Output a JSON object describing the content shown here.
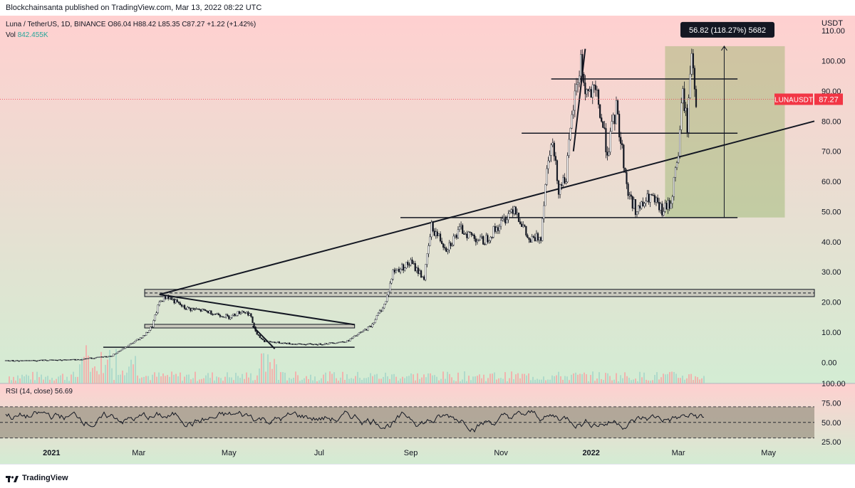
{
  "header": {
    "publisher": "Blockchainsanta published on TradingView.com, Mar 13, 2022 08:22 UTC"
  },
  "legend": {
    "symbol": "Luna / TetherUS, 1D, BINANCE",
    "ohlc": "O86.04 H88.42 L85.35 C87.27 +1.22 (+1.42%)",
    "vol_label": "Vol",
    "vol_value": "842.455K",
    "rsi_label": "RSI (14, close)",
    "rsi_value": "56.69"
  },
  "footer": {
    "brand": "TradingView"
  },
  "colors": {
    "top_band": "#ffd0d0",
    "bottom_band": "#d3ecd3",
    "price_line": "#f23645",
    "rsi_band": "#9e9686",
    "measure_box": "#7fa84e",
    "volume_bar": "#f7a5a5"
  },
  "chart_data": [
    {
      "type": "candlestick",
      "title": "Luna / TetherUS, 1D, BINANCE",
      "y_unit": "USDT",
      "y_ticks": [
        "110.00",
        "100.00",
        "90.00",
        "80.00",
        "70.00",
        "60.00",
        "50.00",
        "40.00",
        "30.00",
        "20.00",
        "10.00",
        "0.00"
      ],
      "ylim": [
        -7,
        115
      ],
      "x_ticks": [
        "2021",
        "Mar",
        "May",
        "Jul",
        "Sep",
        "Nov",
        "2022",
        "Mar",
        "May"
      ],
      "last_price_label": "LUNAUSDT",
      "last_price": "87.27",
      "measure_label": "56.82 (118.27%) 5682",
      "measure_from": 48.05,
      "measure_to": 104.87,
      "horizontal_levels": [
        94,
        76,
        48,
        23,
        12,
        5
      ],
      "trendline": {
        "from": [
          "Mar 2021",
          23
        ],
        "to": [
          "Mar 2022",
          80
        ]
      },
      "series": [
        {
          "name": "LUNAUSDT close (approx.)",
          "points": [
            [
              "2020-12-01",
              0.5
            ],
            [
              "2021-01-15",
              0.8
            ],
            [
              "2021-02-10",
              2
            ],
            [
              "2021-02-20",
              5
            ],
            [
              "2021-03-05",
              9
            ],
            [
              "2021-03-10",
              12
            ],
            [
              "2021-03-15",
              20
            ],
            [
              "2021-03-20",
              22
            ],
            [
              "2021-04-01",
              18
            ],
            [
              "2021-04-15",
              17
            ],
            [
              "2021-05-01",
              15
            ],
            [
              "2021-05-10",
              17
            ],
            [
              "2021-05-15",
              16
            ],
            [
              "2021-05-20",
              9
            ],
            [
              "2021-05-25",
              7
            ],
            [
              "2021-06-15",
              6
            ],
            [
              "2021-07-01",
              6
            ],
            [
              "2021-07-20",
              7
            ],
            [
              "2021-08-05",
              12
            ],
            [
              "2021-08-15",
              20
            ],
            [
              "2021-08-20",
              30
            ],
            [
              "2021-09-01",
              33
            ],
            [
              "2021-09-10",
              28
            ],
            [
              "2021-09-15",
              45
            ],
            [
              "2021-09-25",
              38
            ],
            [
              "2021-10-05",
              44
            ],
            [
              "2021-10-20",
              40
            ],
            [
              "2021-11-01",
              46
            ],
            [
              "2021-11-10",
              52
            ],
            [
              "2021-11-20",
              40
            ],
            [
              "2021-11-28",
              42
            ],
            [
              "2021-12-01",
              60
            ],
            [
              "2021-12-05",
              75
            ],
            [
              "2021-12-10",
              58
            ],
            [
              "2021-12-15",
              62
            ],
            [
              "2021-12-20",
              85
            ],
            [
              "2021-12-25",
              100
            ],
            [
              "2021-12-28",
              90
            ],
            [
              "2022-01-05",
              88
            ],
            [
              "2022-01-12",
              70
            ],
            [
              "2022-01-18",
              84
            ],
            [
              "2022-01-22",
              70
            ],
            [
              "2022-01-26",
              56
            ],
            [
              "2022-02-01",
              50
            ],
            [
              "2022-02-10",
              55
            ],
            [
              "2022-02-18",
              50
            ],
            [
              "2022-02-24",
              53
            ],
            [
              "2022-03-01",
              70
            ],
            [
              "2022-03-04",
              90
            ],
            [
              "2022-03-07",
              78
            ],
            [
              "2022-03-10",
              104
            ],
            [
              "2022-03-13",
              87.27
            ]
          ]
        }
      ]
    },
    {
      "type": "line",
      "title": "RSI (14, close)",
      "y_ticks": [
        "100.00",
        "75.00",
        "50.00",
        "25.00"
      ],
      "ylim": [
        17,
        100
      ],
      "band": [
        30,
        70
      ],
      "last_value": 56.69
    }
  ]
}
